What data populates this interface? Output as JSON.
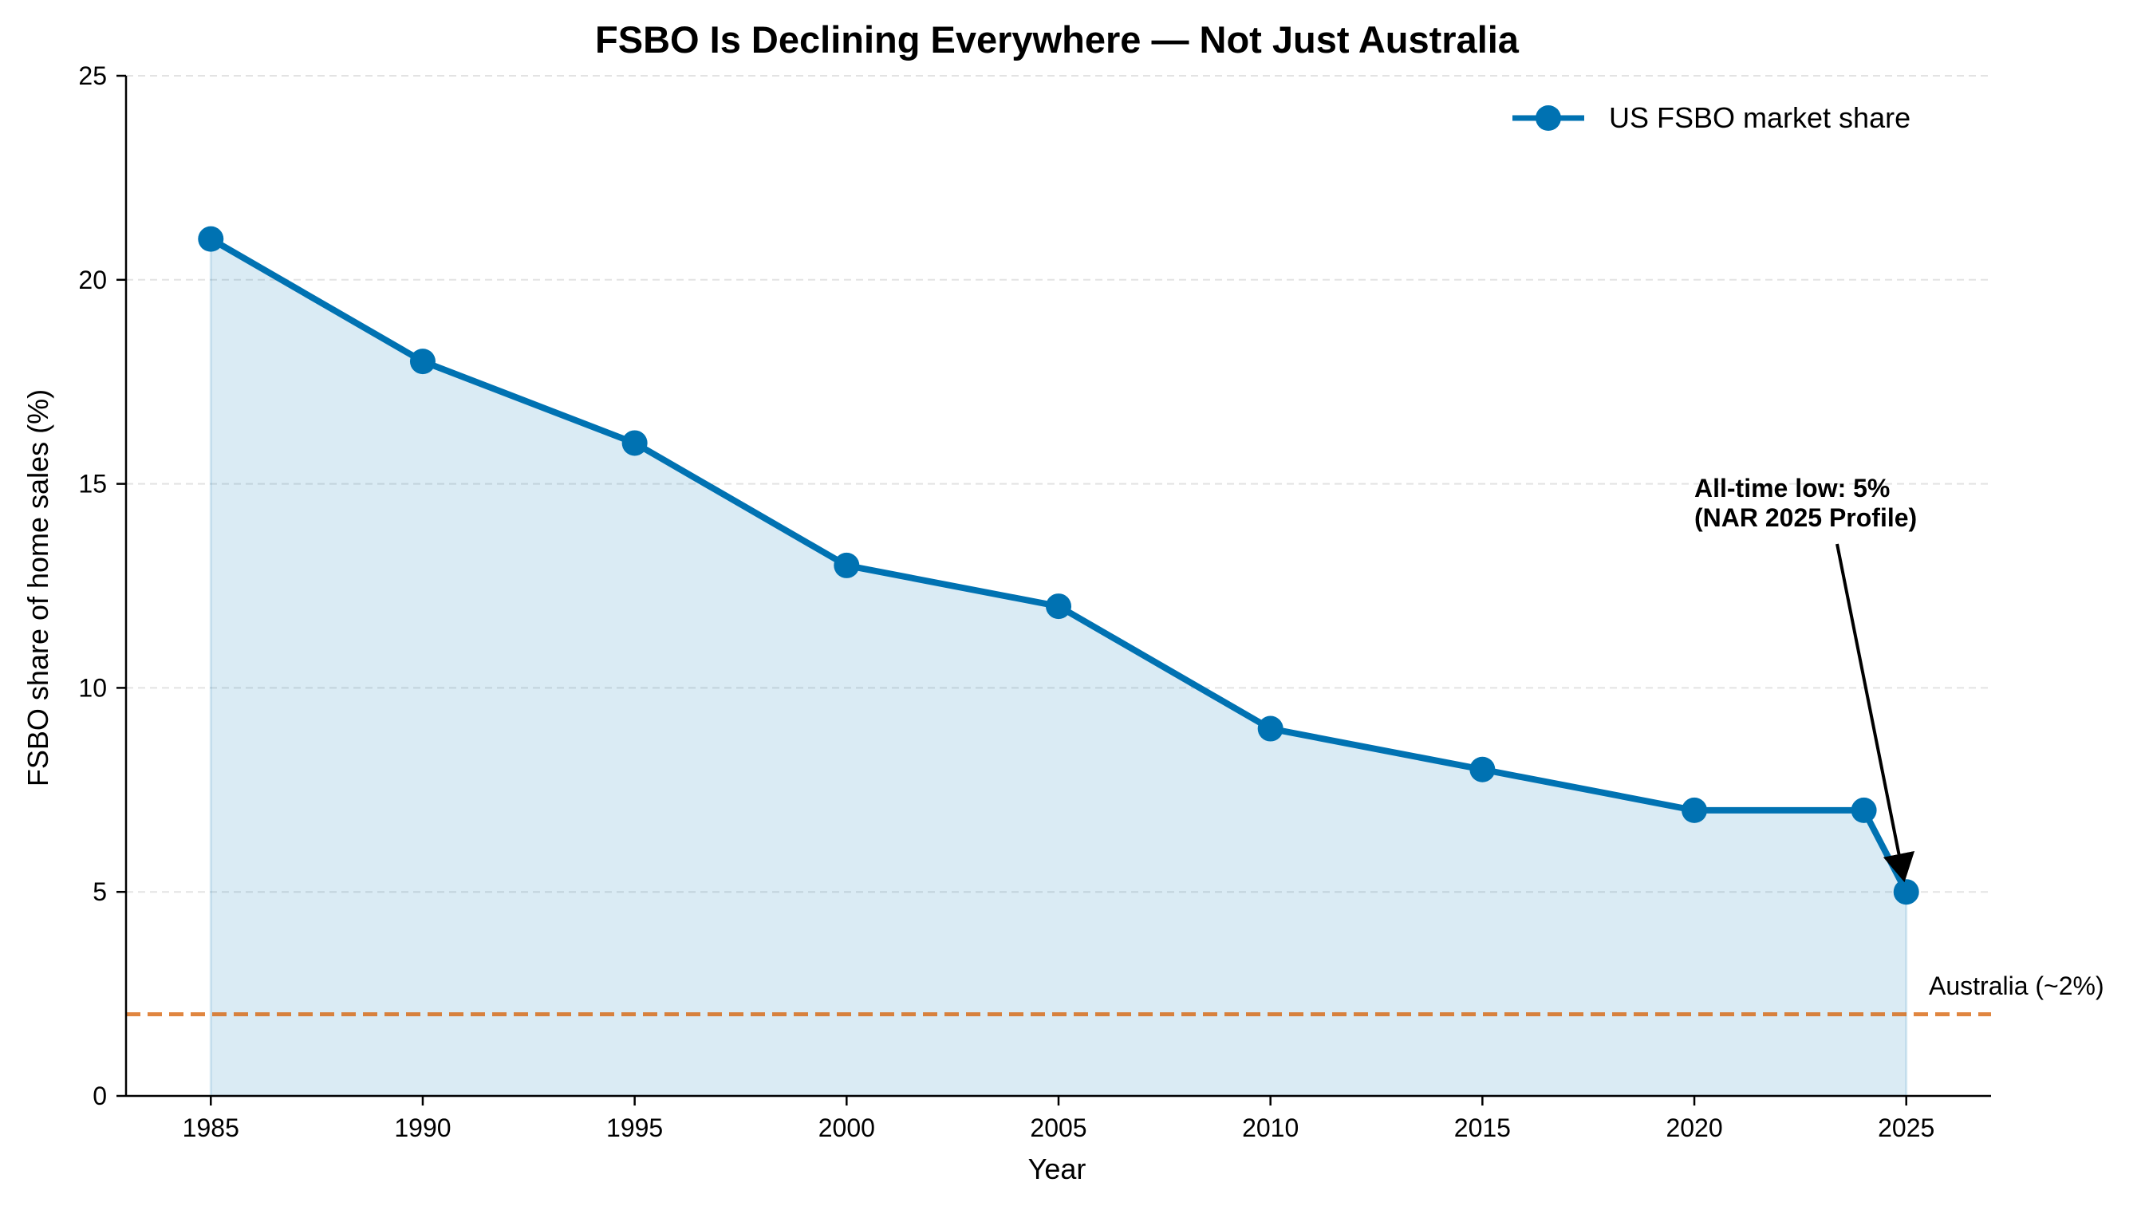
{
  "chart_data": {
    "type": "line",
    "title": "FSBO Is Declining Everywhere — Not Just Australia",
    "xlabel": "Year",
    "ylabel": "FSBO share of home sales (%)",
    "xlim": [
      1983,
      2027
    ],
    "ylim": [
      0,
      25
    ],
    "x_ticks": [
      1985,
      1990,
      1995,
      2000,
      2005,
      2010,
      2015,
      2020,
      2025
    ],
    "y_ticks": [
      0,
      5,
      10,
      15,
      20,
      25
    ],
    "grid": "horizontal dashed",
    "legend_position": "top-right",
    "series": [
      {
        "name": "US FSBO market share",
        "color": "#0072b2",
        "fill": "area shaded to zero",
        "x": [
          1985,
          1990,
          1995,
          2000,
          2005,
          2010,
          2015,
          2020,
          2024,
          2025
        ],
        "y": [
          21,
          18,
          16,
          13,
          12,
          9,
          8,
          7,
          7,
          5
        ]
      }
    ],
    "reference_line": {
      "label": "Australia (~2%)",
      "value": 2,
      "color": "#d55e00",
      "style": "dashed"
    },
    "annotation": {
      "lines": [
        "All-time low: 5%",
        "(NAR 2025 Profile)"
      ],
      "target": {
        "x": 2025,
        "y": 5
      }
    }
  }
}
